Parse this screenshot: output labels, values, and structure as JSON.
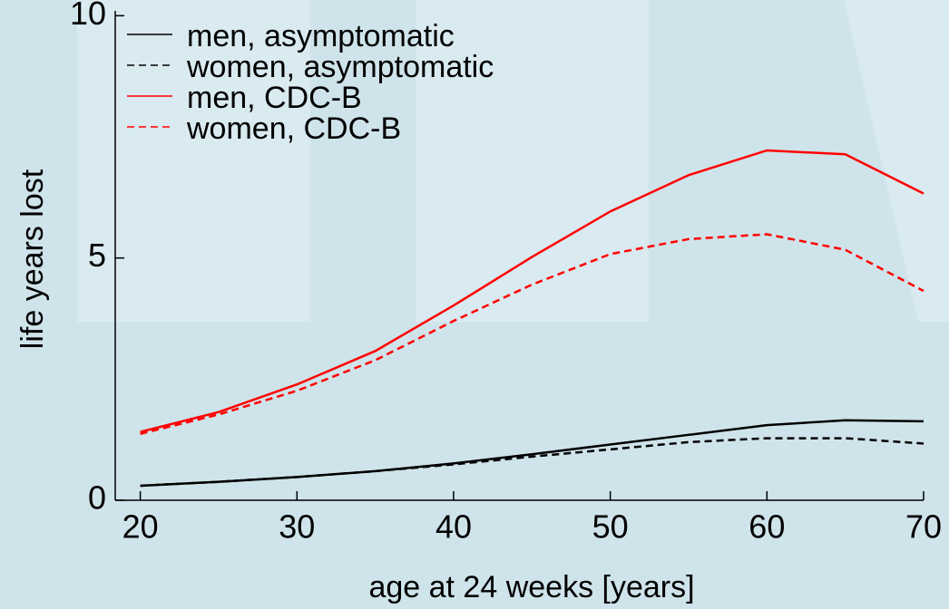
{
  "chart_data": {
    "type": "line",
    "x_label": "age at 24 weeks [years]",
    "y_label": "life years lost",
    "x": [
      20,
      25,
      30,
      35,
      40,
      45,
      50,
      55,
      60,
      65,
      70
    ],
    "series": [
      {
        "name": "men, asymptomatic",
        "color": "#000000",
        "linestyle": "solid",
        "values": [
          0.3,
          0.38,
          0.48,
          0.6,
          0.76,
          0.95,
          1.15,
          1.35,
          1.55,
          1.65,
          1.63
        ]
      },
      {
        "name": "women, asymptomatic",
        "color": "#000000",
        "linestyle": "dashed",
        "values": [
          0.3,
          0.38,
          0.48,
          0.6,
          0.74,
          0.9,
          1.05,
          1.2,
          1.28,
          1.28,
          1.17
        ]
      },
      {
        "name": "men, CDC-B",
        "color": "#ff0000",
        "linestyle": "solid",
        "values": [
          1.41,
          1.82,
          2.39,
          3.08,
          4.02,
          5.02,
          5.96,
          6.71,
          7.22,
          7.14,
          6.33
        ]
      },
      {
        "name": "women, CDC-B",
        "color": "#ff0000",
        "linestyle": "dashed",
        "values": [
          1.37,
          1.77,
          2.26,
          2.89,
          3.7,
          4.45,
          5.08,
          5.39,
          5.49,
          5.17,
          4.32
        ]
      }
    ],
    "xlim": [
      18.4,
      70
    ],
    "xticks": [
      20,
      30,
      40,
      50,
      60,
      70
    ],
    "ylim": [
      0,
      10.1
    ],
    "yticks": [
      0,
      5,
      10
    ],
    "legend": "upper left"
  }
}
